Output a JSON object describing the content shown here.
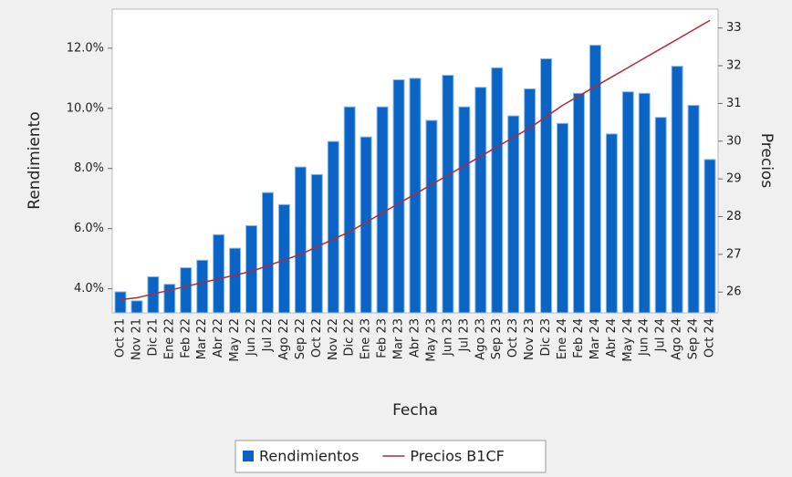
{
  "chart_data": {
    "type": "bar",
    "categories": [
      "Oct 21",
      "Nov 21",
      "Dic 21",
      "Ene 22",
      "Feb 22",
      "Mar 22",
      "Abr 22",
      "May 22",
      "Jun 22",
      "Jul 22",
      "Ago 22",
      "Sep 22",
      "Oct 22",
      "Nov 22",
      "Dic 22",
      "Ene 23",
      "Feb 23",
      "Mar 23",
      "Abr 23",
      "May 23",
      "Jun 23",
      "Jul 23",
      "Ago 23",
      "Sep 23",
      "Oct 23",
      "Nov 23",
      "Dic 23",
      "Ene 24",
      "Feb 24",
      "Mar 24",
      "Abr 24",
      "May 24",
      "Jun 24",
      "Jul 24",
      "Ago 24",
      "Sep 24",
      "Oct 24"
    ],
    "series": [
      {
        "name": "Rendimientos",
        "color": "#0a64c6",
        "type": "bar",
        "values": [
          3.9,
          3.6,
          4.4,
          4.15,
          4.7,
          4.95,
          5.8,
          5.35,
          6.1,
          7.2,
          6.8,
          8.05,
          7.8,
          8.9,
          10.05,
          9.05,
          10.05,
          10.95,
          11.0,
          9.6,
          11.1,
          10.05,
          10.7,
          11.35,
          9.75,
          10.65,
          11.65,
          9.5,
          10.5,
          12.1,
          9.15,
          10.55,
          10.5,
          9.7,
          11.4,
          10.1,
          8.3
        ]
      },
      {
        "name": "Precios B1CF",
        "color": "#b02a36",
        "type": "line",
        "axis": "y2",
        "values": [
          25.8,
          25.85,
          25.95,
          26.05,
          26.15,
          26.25,
          26.35,
          26.45,
          26.55,
          26.7,
          26.85,
          27.0,
          27.2,
          27.4,
          27.6,
          27.85,
          28.1,
          28.35,
          28.6,
          28.85,
          29.1,
          29.35,
          29.6,
          29.85,
          30.1,
          30.35,
          30.65,
          30.95,
          31.2,
          31.45,
          31.7,
          31.95,
          32.2,
          32.45,
          32.7,
          32.95,
          33.2
        ]
      }
    ],
    "x_label": "Fecha",
    "y_label": "Rendimiento",
    "y2_label": "Precios",
    "ylim": [
      3.2,
      13.3
    ],
    "yticks": [
      {
        "value": 4,
        "label": "4.0%"
      },
      {
        "value": 6,
        "label": "6.0%"
      },
      {
        "value": 8,
        "label": "8.0%"
      },
      {
        "value": 10,
        "label": "10.0%"
      },
      {
        "value": 12,
        "label": "12.0%"
      }
    ],
    "y2lim": [
      25.45,
      33.5
    ],
    "y2ticks": [
      26,
      27,
      28,
      29,
      30,
      31,
      32,
      33
    ],
    "grid": false,
    "legend": "bottom"
  }
}
